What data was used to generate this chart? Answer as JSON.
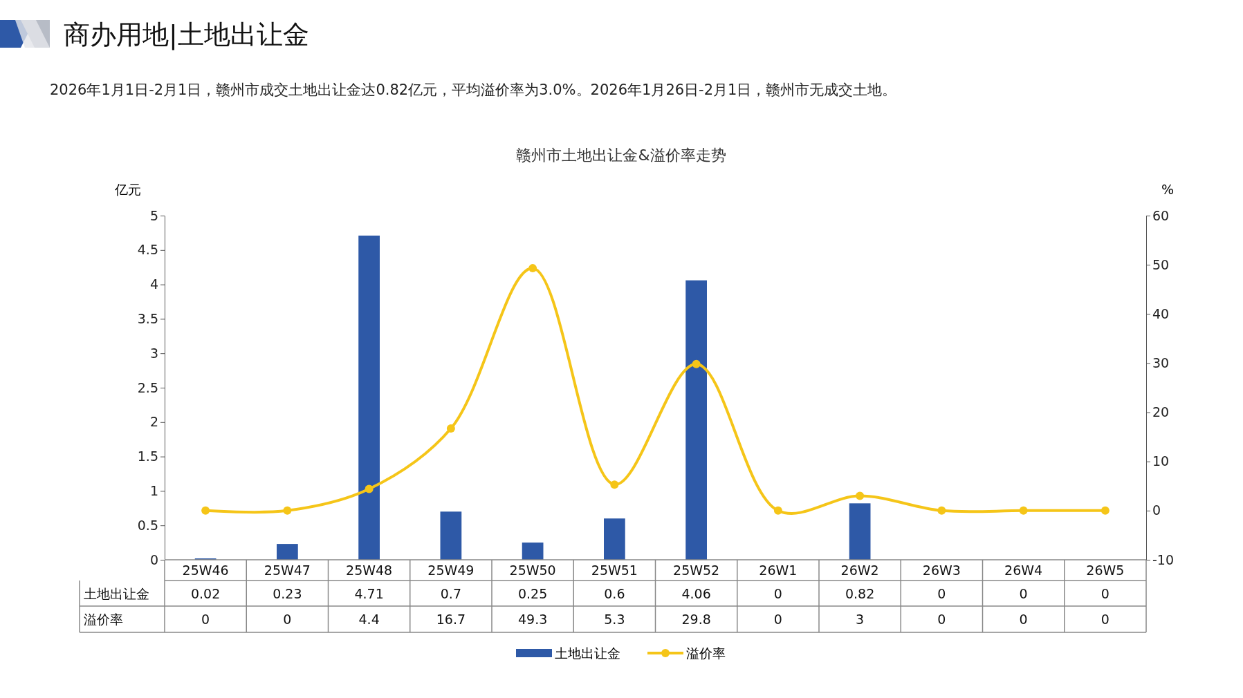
{
  "chart_data": {
    "type": "bar",
    "title": "商办用地|土地出让金",
    "subtitle": "2026年1月1日-2月1日，赣州市成交土地出让金达0.82亿元，平均溢价率为3.0%。2026年1月26日-2月1日，赣州市无成交土地。",
    "annotations": [
      "赣州市土地出让金&溢价率走势"
    ],
    "ylabel": "亿元",
    "y2label": "%",
    "categories": [
      "25W46",
      "25W47",
      "25W48",
      "25W49",
      "25W50",
      "25W51",
      "25W52",
      "26W1",
      "26W2",
      "26W3",
      "26W4",
      "26W5"
    ],
    "series": [
      {
        "name": "土地出让金",
        "color": "#2e59a7",
        "values": [
          0.02,
          0.23,
          4.71,
          0.7,
          0.25,
          0.6,
          4.06,
          0,
          0.82,
          0,
          0,
          0
        ]
      },
      {
        "name": "溢价率",
        "type": "line",
        "axis": "y2",
        "color": "#f5c518",
        "marker": "circle",
        "values": [
          0,
          0,
          4.4,
          16.7,
          49.3,
          5.3,
          29.8,
          0,
          3,
          0,
          0,
          0
        ]
      }
    ],
    "ylim": [
      0,
      5
    ],
    "yticks": [
      0,
      0.5,
      1,
      1.5,
      2,
      2.5,
      3,
      3.5,
      4,
      4.5,
      5
    ],
    "y2lim": [
      -10,
      60
    ],
    "y2ticks": [
      -10,
      0,
      10,
      20,
      30,
      40,
      50,
      60
    ],
    "data_labels": true,
    "legend": "bottom",
    "grid": false
  }
}
